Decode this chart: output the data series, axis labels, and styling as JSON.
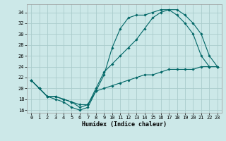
{
  "xlabel": "Humidex (Indice chaleur)",
  "ylabel": "",
  "bg_color": "#cce8e8",
  "grid_color": "#aacccc",
  "line_color": "#006666",
  "xlim": [
    -0.5,
    23.5
  ],
  "ylim": [
    15.5,
    35.5
  ],
  "xticks": [
    0,
    1,
    2,
    3,
    4,
    5,
    6,
    7,
    8,
    9,
    10,
    11,
    12,
    13,
    14,
    15,
    16,
    17,
    18,
    19,
    20,
    21,
    22,
    23
  ],
  "yticks": [
    16,
    18,
    20,
    22,
    24,
    26,
    28,
    30,
    32,
    34
  ],
  "line1_x": [
    0,
    1,
    2,
    3,
    4,
    5,
    6,
    7,
    8,
    9,
    10,
    11,
    12,
    13,
    14,
    15,
    16,
    17,
    18,
    19,
    20,
    21,
    22,
    23
  ],
  "line1_y": [
    21.5,
    20.0,
    18.5,
    18.0,
    17.5,
    16.5,
    16.0,
    16.5,
    19.5,
    22.5,
    27.5,
    31.0,
    33.0,
    33.5,
    33.5,
    34.0,
    34.5,
    34.5,
    33.5,
    32.0,
    30.0,
    26.0,
    24.0,
    24.0
  ],
  "line2_x": [
    0,
    1,
    2,
    3,
    4,
    5,
    6,
    7,
    8,
    9,
    10,
    11,
    12,
    13,
    14,
    15,
    16,
    17,
    18,
    19,
    20,
    21,
    22,
    23
  ],
  "line2_y": [
    21.5,
    20.0,
    18.5,
    18.5,
    18.0,
    17.5,
    16.5,
    17.0,
    20.0,
    23.0,
    24.5,
    26.0,
    27.5,
    29.0,
    31.0,
    33.0,
    34.0,
    34.5,
    34.5,
    33.5,
    32.0,
    30.0,
    26.0,
    24.0
  ],
  "line3_x": [
    0,
    1,
    2,
    3,
    4,
    5,
    6,
    7,
    8,
    9,
    10,
    11,
    12,
    13,
    14,
    15,
    16,
    17,
    18,
    19,
    20,
    21,
    22,
    23
  ],
  "line3_y": [
    21.5,
    20.0,
    18.5,
    18.5,
    18.0,
    17.5,
    17.0,
    17.0,
    19.5,
    20.0,
    20.5,
    21.0,
    21.5,
    22.0,
    22.5,
    22.5,
    23.0,
    23.5,
    23.5,
    23.5,
    23.5,
    24.0,
    24.0,
    24.0
  ],
  "label_fontsize": 5.0,
  "xlabel_fontsize": 6.0,
  "marker_size": 1.8,
  "line_width": 0.8
}
